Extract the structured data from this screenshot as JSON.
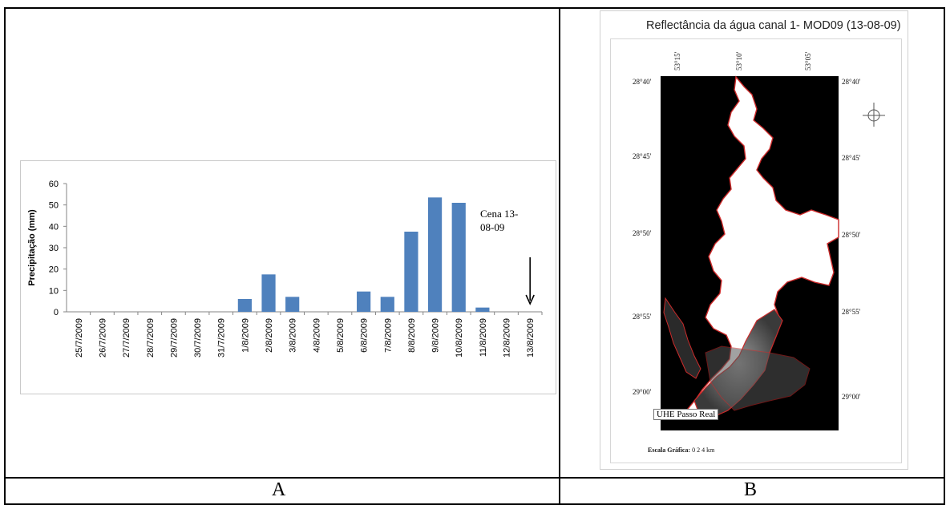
{
  "panels": {
    "a_label": "A",
    "b_label": "B"
  },
  "chart_data": {
    "type": "bar",
    "title": "",
    "xlabel": "",
    "ylabel": "Precipitação (mm)",
    "ylim": [
      0,
      60
    ],
    "yticks": [
      0,
      10,
      20,
      30,
      40,
      50,
      60
    ],
    "categories": [
      "25/7/2009",
      "26/7/2009",
      "27/7/2009",
      "28/7/2009",
      "29/7/2009",
      "30/7/2009",
      "31/7/2009",
      "1/8/2009",
      "2/8/2009",
      "3/8/2009",
      "4/8/2009",
      "5/8/2009",
      "6/8/2009",
      "7/8/2009",
      "8/8/2009",
      "9/8/2009",
      "10/8/2009",
      "11/8/2009",
      "12/8/2009",
      "13/8/2009"
    ],
    "values": [
      0,
      0,
      0,
      0,
      0,
      0,
      0,
      6,
      17.5,
      7,
      0,
      0,
      9.5,
      7,
      37.5,
      53.5,
      51,
      2,
      0,
      0
    ],
    "bar_color": "#4F81BD",
    "grid": false,
    "annotation": {
      "text_line1": "Cena 13-",
      "text_line2": "08-09",
      "arrow": "down",
      "target_category": "13/8/2009"
    }
  },
  "map": {
    "title": "Reflectância da água canal 1- MOD09 (13-08-09)",
    "lon_labels": [
      "53°15'",
      "53°10'",
      "53°05'"
    ],
    "lat_labels": [
      "28°40'",
      "28°45'",
      "28°50'",
      "28°55'",
      "29°00'"
    ],
    "place_label": "UHE Passo Real",
    "scale_label": "Escala Gráfica:",
    "scale_values": "0  2  4 km",
    "north_symbol": "N",
    "colors": {
      "background": "#000000",
      "water": "#ffffff",
      "contour": "#d12a2a"
    }
  }
}
